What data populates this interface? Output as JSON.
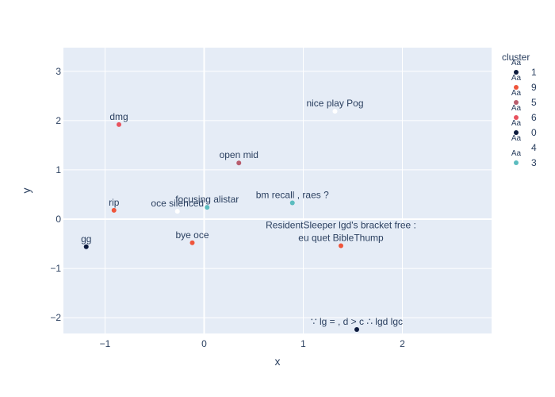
{
  "chart_data": {
    "type": "scatter",
    "title": "",
    "xlabel": "x",
    "ylabel": "y",
    "xlim": [
      -1.42,
      2.9
    ],
    "ylim": [
      -2.32,
      3.48
    ],
    "xticks": [
      -1,
      0,
      1,
      2
    ],
    "xtick_labels": [
      "−1",
      "0",
      "1",
      "2"
    ],
    "yticks": [
      -2,
      -1,
      0,
      1,
      2,
      3
    ],
    "ytick_labels": [
      "−2",
      "−1",
      "0",
      "1",
      "2",
      "3"
    ],
    "grid": true,
    "legend_title": "cluster",
    "legend_position": "right",
    "series": [
      {
        "name": "1",
        "color": "#0d1b3e",
        "points": [
          {
            "x": -1.19,
            "y": -0.56,
            "text": "gg"
          },
          {
            "x": 1.54,
            "y": -2.24,
            "text": "∵ lg =  ,  d > c ∴ lgd lgc"
          }
        ]
      },
      {
        "name": "9",
        "color": "#ef553b",
        "points": [
          {
            "x": -0.91,
            "y": 0.18,
            "text": "rip"
          },
          {
            "x": -0.12,
            "y": -0.48,
            "text": "bye oce"
          },
          {
            "x": 1.38,
            "y": -0.54,
            "text": "ResidentSleeper lgd's bracket free : eu quet BibleThump"
          }
        ]
      },
      {
        "name": "5",
        "color": "#b85d6e",
        "points": [
          {
            "x": 0.35,
            "y": 1.14,
            "text": "open mid"
          }
        ]
      },
      {
        "name": "6",
        "color": "#e8525e",
        "points": [
          {
            "x": -0.86,
            "y": 1.92,
            "text": "dmg"
          }
        ]
      },
      {
        "name": "0",
        "color": "#0d1b3e",
        "points": []
      },
      {
        "name": "4",
        "color": "#ffffff",
        "points": [
          {
            "x": 1.32,
            "y": 2.19,
            "text": "nice play Pog"
          },
          {
            "x": -0.27,
            "y": 0.16,
            "text": "oce silenced"
          }
        ]
      },
      {
        "name": "3",
        "color": "#5bbcbf",
        "points": [
          {
            "x": 0.03,
            "y": 0.24,
            "text": "focusing alistar"
          },
          {
            "x": 0.89,
            "y": 0.33,
            "text": "bm recall , raes ?"
          }
        ]
      }
    ]
  }
}
